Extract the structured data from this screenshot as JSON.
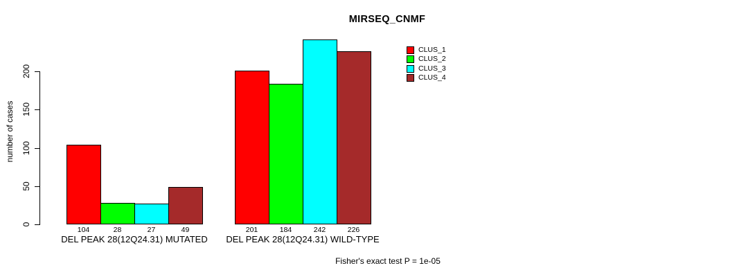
{
  "chart_data": {
    "type": "bar",
    "title": "MIRSEQ_CNMF",
    "xlabel": "",
    "ylabel": "number of cases",
    "categories": [
      "DEL PEAK 28(12Q24.31) MUTATED",
      "DEL PEAK 28(12Q24.31) WILD-TYPE"
    ],
    "series": [
      {
        "name": "CLUS_1",
        "color": "#ff0000",
        "values": [
          104,
          201
        ]
      },
      {
        "name": "CLUS_2",
        "color": "#00ff00",
        "values": [
          28,
          184
        ]
      },
      {
        "name": "CLUS_3",
        "color": "#00ffff",
        "values": [
          27,
          242
        ]
      },
      {
        "name": "CLUS_4",
        "color": "#a52a2a",
        "values": [
          49,
          226
        ]
      }
    ],
    "yticks": [
      0,
      50,
      100,
      150,
      200
    ],
    "ylim": [
      0,
      245
    ],
    "bar_value_labels": true,
    "grid": "off",
    "legend_position": "right-top",
    "annotation": "Fisher's exact test P = 1e-05",
    "text_color": "#000000",
    "axis_color": "#000000",
    "background_color": "#ffffff"
  }
}
